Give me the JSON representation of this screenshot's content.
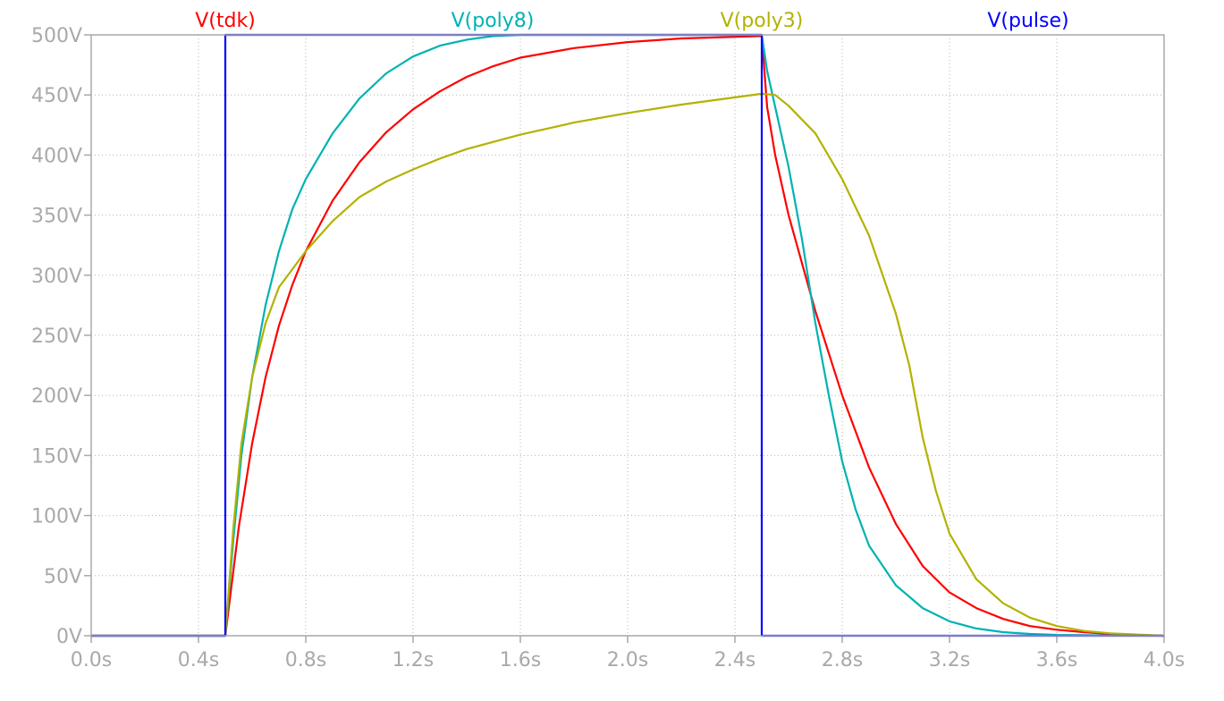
{
  "chart_data": {
    "type": "line",
    "title": "",
    "xlabel": "",
    "ylabel": "",
    "xlim": [
      0,
      4
    ],
    "ylim": [
      0,
      500
    ],
    "grid": true,
    "legend_placement": "top",
    "x_ticks": [
      {
        "value": 0.0,
        "label": "0.0s"
      },
      {
        "value": 0.4,
        "label": "0.4s"
      },
      {
        "value": 0.8,
        "label": "0.8s"
      },
      {
        "value": 1.2,
        "label": "1.2s"
      },
      {
        "value": 1.6,
        "label": "1.6s"
      },
      {
        "value": 2.0,
        "label": "2.0s"
      },
      {
        "value": 2.4,
        "label": "2.4s"
      },
      {
        "value": 2.8,
        "label": "2.8s"
      },
      {
        "value": 3.2,
        "label": "3.2s"
      },
      {
        "value": 3.6,
        "label": "3.6s"
      },
      {
        "value": 4.0,
        "label": "4.0s"
      }
    ],
    "y_ticks": [
      {
        "value": 0,
        "label": "0V"
      },
      {
        "value": 50,
        "label": "50V"
      },
      {
        "value": 100,
        "label": "100V"
      },
      {
        "value": 150,
        "label": "150V"
      },
      {
        "value": 200,
        "label": "200V"
      },
      {
        "value": 250,
        "label": "250V"
      },
      {
        "value": 300,
        "label": "300V"
      },
      {
        "value": 350,
        "label": "350V"
      },
      {
        "value": 400,
        "label": "400V"
      },
      {
        "value": 450,
        "label": "450V"
      },
      {
        "value": 500,
        "label": "500V"
      }
    ],
    "series": [
      {
        "name": "V(tdk)",
        "color": "#ff0000",
        "points": [
          [
            0,
            0
          ],
          [
            0.5,
            0
          ],
          [
            0.55,
            90
          ],
          [
            0.6,
            160
          ],
          [
            0.65,
            215
          ],
          [
            0.7,
            258
          ],
          [
            0.75,
            292
          ],
          [
            0.8,
            320
          ],
          [
            0.9,
            362
          ],
          [
            1.0,
            394
          ],
          [
            1.1,
            419
          ],
          [
            1.2,
            438
          ],
          [
            1.3,
            453
          ],
          [
            1.4,
            465
          ],
          [
            1.5,
            474
          ],
          [
            1.6,
            481
          ],
          [
            1.8,
            489
          ],
          [
            2.0,
            494
          ],
          [
            2.2,
            497
          ],
          [
            2.5,
            499
          ],
          [
            2.52,
            440
          ],
          [
            2.55,
            400
          ],
          [
            2.6,
            350
          ],
          [
            2.65,
            310
          ],
          [
            2.7,
            270
          ],
          [
            2.75,
            235
          ],
          [
            2.8,
            200
          ],
          [
            2.9,
            140
          ],
          [
            3.0,
            93
          ],
          [
            3.1,
            58
          ],
          [
            3.2,
            36
          ],
          [
            3.3,
            23
          ],
          [
            3.4,
            14
          ],
          [
            3.5,
            8
          ],
          [
            3.6,
            5
          ],
          [
            3.7,
            3
          ],
          [
            3.8,
            1.5
          ],
          [
            3.9,
            0.6
          ],
          [
            4.0,
            0
          ]
        ]
      },
      {
        "name": "V(poly8)",
        "color": "#00b2b2",
        "points": [
          [
            0,
            0
          ],
          [
            0.5,
            0
          ],
          [
            0.53,
            80
          ],
          [
            0.56,
            150
          ],
          [
            0.6,
            215
          ],
          [
            0.65,
            275
          ],
          [
            0.7,
            320
          ],
          [
            0.75,
            355
          ],
          [
            0.8,
            380
          ],
          [
            0.9,
            418
          ],
          [
            1.0,
            447
          ],
          [
            1.1,
            468
          ],
          [
            1.2,
            482
          ],
          [
            1.3,
            491
          ],
          [
            1.4,
            496
          ],
          [
            1.5,
            499
          ],
          [
            1.6,
            500
          ],
          [
            2.0,
            500
          ],
          [
            2.5,
            500
          ],
          [
            2.52,
            470
          ],
          [
            2.55,
            440
          ],
          [
            2.6,
            390
          ],
          [
            2.65,
            330
          ],
          [
            2.7,
            260
          ],
          [
            2.75,
            200
          ],
          [
            2.8,
            145
          ],
          [
            2.85,
            105
          ],
          [
            2.9,
            75
          ],
          [
            3.0,
            42
          ],
          [
            3.1,
            23
          ],
          [
            3.2,
            12
          ],
          [
            3.3,
            6
          ],
          [
            3.4,
            3
          ],
          [
            3.5,
            1.5
          ],
          [
            3.6,
            0.7
          ],
          [
            3.8,
            0.2
          ],
          [
            4.0,
            0
          ]
        ]
      },
      {
        "name": "V(poly3)",
        "color": "#b2b200",
        "points": [
          [
            0,
            0
          ],
          [
            0.5,
            0
          ],
          [
            0.53,
            90
          ],
          [
            0.56,
            160
          ],
          [
            0.6,
            215
          ],
          [
            0.65,
            260
          ],
          [
            0.7,
            290
          ],
          [
            0.75,
            305
          ],
          [
            0.8,
            320
          ],
          [
            0.9,
            345
          ],
          [
            1.0,
            365
          ],
          [
            1.1,
            378
          ],
          [
            1.2,
            388
          ],
          [
            1.3,
            397
          ],
          [
            1.4,
            405
          ],
          [
            1.6,
            417
          ],
          [
            1.8,
            427
          ],
          [
            2.0,
            435
          ],
          [
            2.2,
            442
          ],
          [
            2.4,
            448
          ],
          [
            2.5,
            451
          ],
          [
            2.55,
            450
          ],
          [
            2.6,
            441
          ],
          [
            2.7,
            418
          ],
          [
            2.8,
            380
          ],
          [
            2.9,
            333
          ],
          [
            3.0,
            268
          ],
          [
            3.05,
            225
          ],
          [
            3.1,
            165
          ],
          [
            3.15,
            120
          ],
          [
            3.2,
            85
          ],
          [
            3.3,
            47
          ],
          [
            3.4,
            27
          ],
          [
            3.5,
            15
          ],
          [
            3.6,
            8
          ],
          [
            3.7,
            4
          ],
          [
            3.8,
            2
          ],
          [
            3.9,
            1
          ],
          [
            4.0,
            0
          ]
        ]
      },
      {
        "name": "V(pulse)",
        "color": "#0000ff",
        "points": [
          [
            0,
            0
          ],
          [
            0.5,
            0
          ],
          [
            0.5,
            500
          ],
          [
            2.5,
            500
          ],
          [
            2.5,
            0
          ],
          [
            4.0,
            0
          ]
        ]
      }
    ]
  }
}
